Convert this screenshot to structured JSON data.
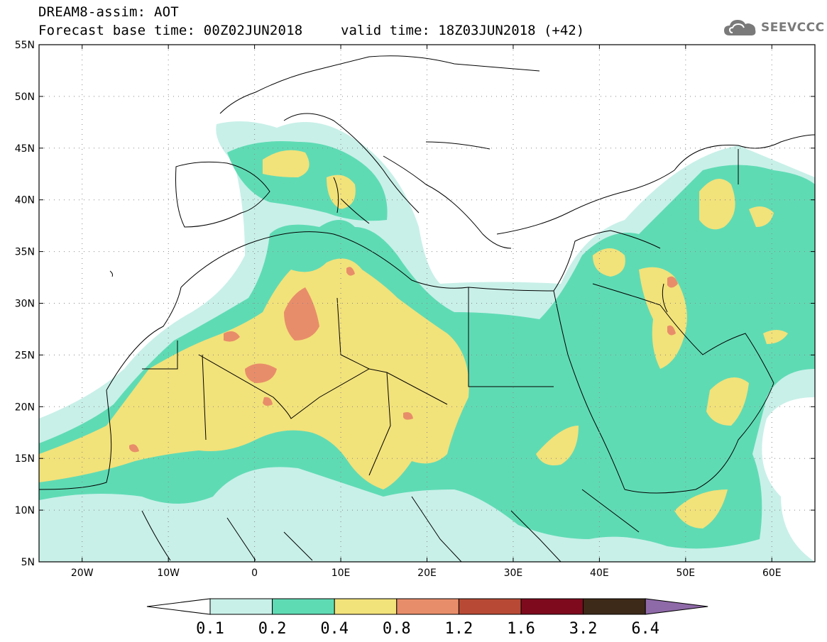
{
  "header": {
    "title": "DREAM8-assim: AOT",
    "base_time": "Forecast base time: 00Z02JUN2018",
    "valid_time": "valid time: 18Z03JUN2018 (+42)"
  },
  "logo": {
    "text": "SEEVCCC",
    "icon": "cloud-icon"
  },
  "map": {
    "lat_ticks": [
      "55N",
      "50N",
      "45N",
      "40N",
      "35N",
      "30N",
      "25N",
      "20N",
      "15N",
      "10N",
      "5N"
    ],
    "lon_ticks": [
      "20W",
      "10W",
      "0",
      "10E",
      "20E",
      "30E",
      "40E",
      "50E",
      "60E"
    ],
    "lon_range": [
      -25,
      65
    ],
    "lat_range": [
      5,
      55
    ],
    "gridlines": true
  },
  "colorbar": {
    "levels": [
      "0.1",
      "0.2",
      "0.4",
      "0.8",
      "1.2",
      "1.6",
      "3.2",
      "6.4"
    ],
    "colors": [
      "#ffffff",
      "#c8f0e8",
      "#5fdbb4",
      "#f2e27a",
      "#e88d6a",
      "#b84a35",
      "#7e0a1e",
      "#3e2a18",
      "#8f6aa8"
    ]
  }
}
